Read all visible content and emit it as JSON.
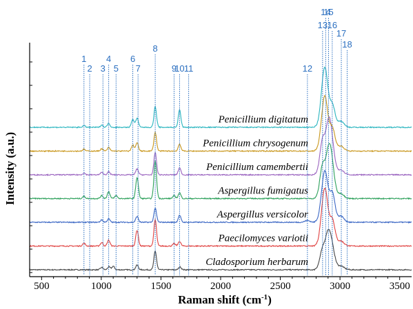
{
  "chart_data": {
    "type": "line",
    "title": "",
    "xlabel": "Raman shift (cm",
    "xlabel_superscript": "-1",
    "xlabel_close": ")",
    "ylabel": "Intensity (a.u.)",
    "xlim": [
      400,
      3600
    ],
    "xticks": [
      500,
      1000,
      1500,
      2000,
      2500,
      3000,
      3500
    ],
    "y_tick_labels_visible": false,
    "grid": false,
    "legend": "none",
    "peak_markers": [
      {
        "label": "1",
        "x": 855
      },
      {
        "label": "2",
        "x": 903
      },
      {
        "label": "3",
        "x": 1014
      },
      {
        "label": "4",
        "x": 1062
      },
      {
        "label": "5",
        "x": 1124
      },
      {
        "label": "6",
        "x": 1264
      },
      {
        "label": "7",
        "x": 1308
      },
      {
        "label": "8",
        "x": 1452
      },
      {
        "label": "9",
        "x": 1610
      },
      {
        "label": "10",
        "x": 1656
      },
      {
        "label": "11",
        "x": 1732
      },
      {
        "label": "12",
        "x": 2727
      },
      {
        "label": "13",
        "x": 2854
      },
      {
        "label": "14",
        "x": 2880
      },
      {
        "label": "15",
        "x": 2904
      },
      {
        "label": "16",
        "x": 2935
      },
      {
        "label": "17",
        "x": 3011
      },
      {
        "label": "18",
        "x": 3060
      }
    ],
    "series": [
      {
        "name": "Cladosporium herbarum",
        "color": "#444444",
        "offset": 0,
        "peaks": [
          [
            1004,
            0.04
          ],
          [
            1064,
            0.05
          ],
          [
            1100,
            0.06
          ],
          [
            1300,
            0.08
          ],
          [
            1452,
            0.32
          ],
          [
            1660,
            0.05
          ],
          [
            2854,
            0.3
          ],
          [
            2900,
            0.52
          ],
          [
            2935,
            0.28
          ],
          [
            3010,
            0.04
          ]
        ]
      },
      {
        "name": "Paecilomyces variotii",
        "color": "#e0403f",
        "offset": 1,
        "peaks": [
          [
            855,
            0.05
          ],
          [
            1004,
            0.06
          ],
          [
            1062,
            0.1
          ],
          [
            1300,
            0.27
          ],
          [
            1452,
            0.45
          ],
          [
            1610,
            0.04
          ],
          [
            1656,
            0.08
          ],
          [
            2854,
            0.4
          ],
          [
            2880,
            0.7
          ],
          [
            2935,
            0.4
          ],
          [
            3010,
            0.06
          ]
        ]
      },
      {
        "name": "Aspergillus versicolor",
        "color": "#3a66c4",
        "offset": 2,
        "peaks": [
          [
            1004,
            0.04
          ],
          [
            1062,
            0.06
          ],
          [
            1300,
            0.1
          ],
          [
            1452,
            0.24
          ],
          [
            1656,
            0.12
          ],
          [
            2727,
            0.03
          ],
          [
            2854,
            0.34
          ],
          [
            2880,
            0.62
          ],
          [
            2935,
            0.45
          ],
          [
            3010,
            0.08
          ]
        ]
      },
      {
        "name": "Aspergillus fumigatus",
        "color": "#2ca05a",
        "offset": 3,
        "peaks": [
          [
            855,
            0.04
          ],
          [
            1004,
            0.05
          ],
          [
            1062,
            0.12
          ],
          [
            1124,
            0.05
          ],
          [
            1300,
            0.36
          ],
          [
            1452,
            0.64
          ],
          [
            1610,
            0.05
          ],
          [
            1656,
            0.1
          ],
          [
            2854,
            0.52
          ],
          [
            2904,
            0.68
          ],
          [
            2935,
            0.4
          ],
          [
            3010,
            0.06
          ]
        ]
      },
      {
        "name": "Penicillium camembertii",
        "color": "#9b64c0",
        "offset": 4,
        "peaks": [
          [
            855,
            0.03
          ],
          [
            1004,
            0.04
          ],
          [
            1062,
            0.05
          ],
          [
            1300,
            0.1
          ],
          [
            1452,
            0.38
          ],
          [
            1656,
            0.12
          ],
          [
            2854,
            0.55
          ],
          [
            2904,
            0.75
          ],
          [
            2935,
            0.35
          ],
          [
            3010,
            0.06
          ]
        ]
      },
      {
        "name": "Penicillium chrysogenum",
        "color": "#c9971d",
        "offset": 5,
        "peaks": [
          [
            855,
            0.03
          ],
          [
            1004,
            0.04
          ],
          [
            1062,
            0.06
          ],
          [
            1264,
            0.1
          ],
          [
            1300,
            0.14
          ],
          [
            1452,
            0.32
          ],
          [
            1656,
            0.12
          ],
          [
            2854,
            0.38
          ],
          [
            2880,
            0.66
          ],
          [
            2935,
            0.34
          ],
          [
            3010,
            0.06
          ]
        ]
      },
      {
        "name": "Penicillium digitatum",
        "color": "#2ab5bf",
        "offset": 6,
        "peaks": [
          [
            855,
            0.03
          ],
          [
            1004,
            0.04
          ],
          [
            1062,
            0.07
          ],
          [
            1264,
            0.14
          ],
          [
            1300,
            0.16
          ],
          [
            1452,
            0.35
          ],
          [
            1656,
            0.3
          ],
          [
            2854,
            0.42
          ],
          [
            2880,
            0.72
          ],
          [
            2935,
            0.34
          ],
          [
            3010,
            0.08
          ]
        ]
      }
    ]
  }
}
